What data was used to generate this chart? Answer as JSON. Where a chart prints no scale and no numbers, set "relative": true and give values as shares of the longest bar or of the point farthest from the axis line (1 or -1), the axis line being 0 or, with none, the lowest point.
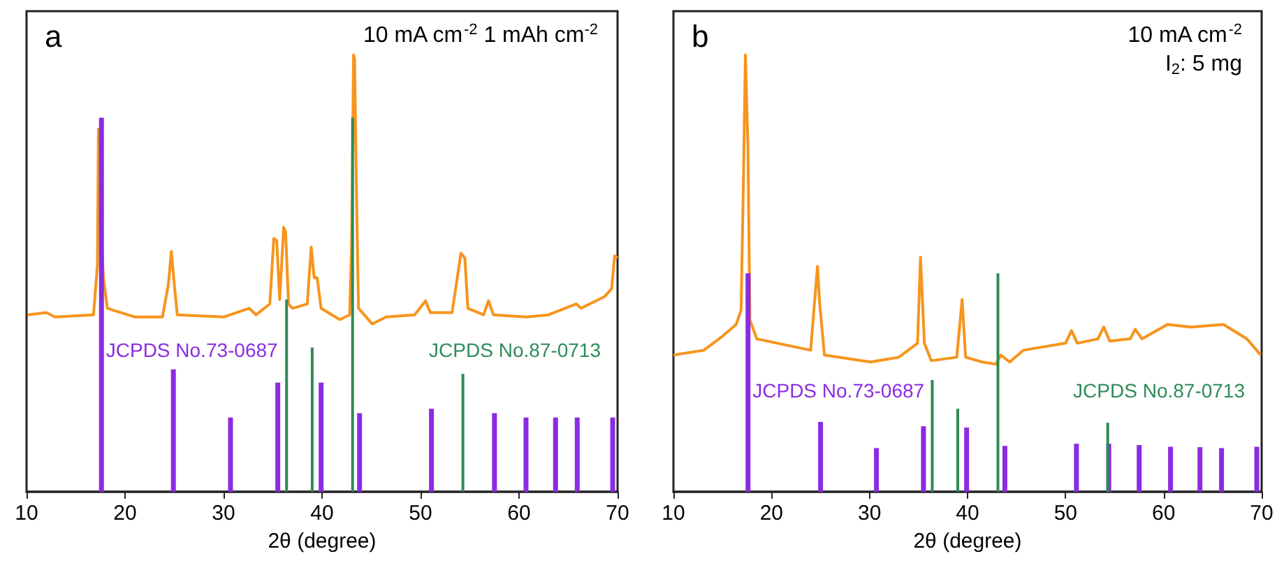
{
  "chart_data": [
    {
      "type": "line",
      "title": "a",
      "annotations": [
        "10 mA cm$^{-2}$ 1 mAh cm$^{-2}$"
      ],
      "xlabel": "2θ (degree)",
      "xlim": [
        10,
        70
      ],
      "xticks": [
        10,
        20,
        30,
        40,
        50,
        60,
        70
      ],
      "relative": true,
      "tick_labels": "x",
      "grid": false,
      "legend": false,
      "marker": "none",
      "series": [
        {
          "color": "#f7941d",
          "x": [
            10.1,
            12.0,
            12.9,
            16.8,
            17.2,
            17.3,
            17.5,
            17.8,
            18.2,
            21,
            23.8,
            24.4,
            24.7,
            25.0,
            25.3,
            30,
            32.6,
            33.3,
            34.7,
            35.1,
            35.4,
            35.7,
            36.1,
            36.3,
            36.6,
            37.0,
            38.5,
            38.9,
            39.2,
            39.5,
            39.9,
            41.8,
            42.8,
            43.0,
            43.2,
            43.3,
            43.5,
            43.7,
            45.1,
            46.5,
            49.4,
            50.5,
            51.0,
            53.2,
            54.1,
            54.5,
            54.8,
            56.4,
            56.9,
            57.4,
            60.7,
            63.0,
            65.8,
            66.3,
            68.7,
            69.4,
            69.7,
            70.0
          ],
          "values": [
            0.405,
            0.41,
            0.4,
            0.405,
            0.52,
            0.83,
            0.64,
            0.49,
            0.42,
            0.4,
            0.4,
            0.475,
            0.55,
            0.475,
            0.405,
            0.4,
            0.42,
            0.405,
            0.43,
            0.58,
            0.575,
            0.44,
            0.605,
            0.595,
            0.43,
            0.42,
            0.43,
            0.56,
            0.49,
            0.49,
            0.42,
            0.394,
            0.405,
            0.56,
            1.0,
            0.99,
            0.68,
            0.42,
            0.384,
            0.4,
            0.405,
            0.437,
            0.41,
            0.41,
            0.546,
            0.535,
            0.42,
            0.405,
            0.437,
            0.405,
            0.4,
            0.405,
            0.43,
            0.42,
            0.447,
            0.465,
            0.54,
            0.535
          ]
        },
        {
          "type": "bar",
          "name": "JCPDS No.73-0687",
          "color": "#8b2be2",
          "x": [
            17.5,
            24.8,
            30.6,
            35.4,
            39.8,
            43.7,
            51.0,
            57.4,
            60.6,
            63.6,
            65.8,
            69.4
          ],
          "values": [
            0.856,
            0.28,
            0.17,
            0.25,
            0.25,
            0.18,
            0.19,
            0.18,
            0.17,
            0.17,
            0.17,
            0.17
          ]
        },
        {
          "type": "bar",
          "name": "JCPDS No.87-0713",
          "color": "#2e8b57",
          "x": [
            36.4,
            39.0,
            43.1,
            54.3
          ],
          "values": [
            0.44,
            0.33,
            0.856,
            0.27
          ]
        }
      ]
    },
    {
      "type": "line",
      "title": "b",
      "annotations": [
        "10 mA cm$^{-2}$",
        "I$_{2}$: 5 mg"
      ],
      "xlabel": "2θ (degree)",
      "xlim": [
        10,
        70
      ],
      "xticks": [
        10,
        20,
        30,
        40,
        50,
        60,
        70
      ],
      "relative": true,
      "tick_labels": "x",
      "grid": false,
      "legend": false,
      "marker": "none",
      "series": [
        {
          "color": "#f7941d",
          "x": [
            10,
            13.1,
            15.0,
            16.4,
            16.9,
            17.15,
            17.34,
            17.6,
            17.8,
            18.5,
            24.0,
            24.4,
            24.7,
            24.9,
            25.4,
            30.1,
            33.0,
            34.9,
            35.2,
            35.6,
            36.3,
            38.9,
            39.45,
            39.8,
            41.5,
            42.9,
            43.4,
            44.3,
            45.7,
            50.0,
            50.6,
            51.2,
            53.3,
            53.9,
            54.5,
            56.6,
            57.1,
            57.8,
            60.4,
            62.8,
            66.1,
            68.5,
            69.9
          ],
          "values": [
            0.313,
            0.324,
            0.356,
            0.383,
            0.416,
            0.725,
            1.0,
            0.79,
            0.393,
            0.35,
            0.324,
            0.436,
            0.516,
            0.436,
            0.313,
            0.297,
            0.308,
            0.34,
            0.537,
            0.34,
            0.3,
            0.308,
            0.44,
            0.308,
            0.297,
            0.292,
            0.313,
            0.297,
            0.324,
            0.34,
            0.369,
            0.34,
            0.35,
            0.377,
            0.345,
            0.35,
            0.372,
            0.35,
            0.383,
            0.377,
            0.383,
            0.35,
            0.313
          ]
        },
        {
          "type": "bar",
          "name": "JCPDS No.73-0687",
          "color": "#8b2be2",
          "x": [
            17.5,
            24.9,
            30.6,
            35.4,
            39.8,
            43.7,
            51.0,
            54.3,
            57.4,
            60.6,
            63.6,
            65.8,
            69.4
          ],
          "values": [
            0.5,
            0.16,
            0.1,
            0.15,
            0.147,
            0.105,
            0.11,
            0.11,
            0.107,
            0.103,
            0.102,
            0.1,
            0.103
          ]
        },
        {
          "type": "bar",
          "name": "JCPDS No.87-0713",
          "color": "#2e8b57",
          "x": [
            36.4,
            39.0,
            43.1,
            54.3
          ],
          "values": [
            0.256,
            0.19,
            0.5,
            0.158
          ]
        }
      ]
    }
  ]
}
